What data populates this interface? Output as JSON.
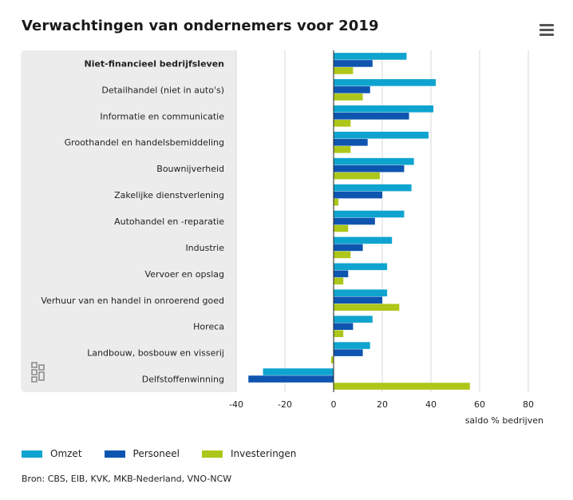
{
  "title": "Verwachtingen van ondernemers voor 2019",
  "menu_icon": "hamburger-menu-icon",
  "logo_icon": "cbs-logo",
  "source": "Bron: CBS, EIB, KVK, MKB-Nederland, VNO-NCW",
  "colors": {
    "Omzet": "#0fa4cf",
    "Personeel": "#0e55b0",
    "Investeringen": "#adc61a",
    "panel": "#ececec",
    "grid": "#d9d9d9",
    "axis": "#222222"
  },
  "chart_data": {
    "type": "bar",
    "orientation": "horizontal",
    "categories": [
      "Niet-financieel bedrijfsleven",
      "Detailhandel (niet in auto's)",
      "Informatie en communicatie",
      "Groothandel en handelsbemiddeling",
      "Bouwnijverheid",
      "Zakelijke dienstverlening",
      "Autohandel en -reparatie",
      "Industrie",
      "Vervoer en opslag",
      "Verhuur van en handel in onroerend goed",
      "Horeca",
      "Landbouw, bosbouw en visserij",
      "Delfstoffenwinning"
    ],
    "series": [
      {
        "name": "Omzet",
        "values": [
          30,
          42,
          41,
          39,
          33,
          32,
          29,
          24,
          22,
          22,
          16,
          15,
          -29
        ]
      },
      {
        "name": "Personeel",
        "values": [
          16,
          15,
          31,
          14,
          29,
          20,
          17,
          12,
          6,
          20,
          8,
          12,
          -35
        ]
      },
      {
        "name": "Investeringen",
        "values": [
          8,
          12,
          7,
          7,
          19,
          2,
          6,
          7,
          4,
          27,
          4,
          -1,
          56
        ]
      }
    ],
    "xlabel": "saldo % bedrijven",
    "xlim": [
      -40,
      80
    ],
    "xticks": [
      -40,
      -20,
      0,
      20,
      40,
      60,
      80
    ],
    "grid": true,
    "legend_position": "bottom-left"
  }
}
